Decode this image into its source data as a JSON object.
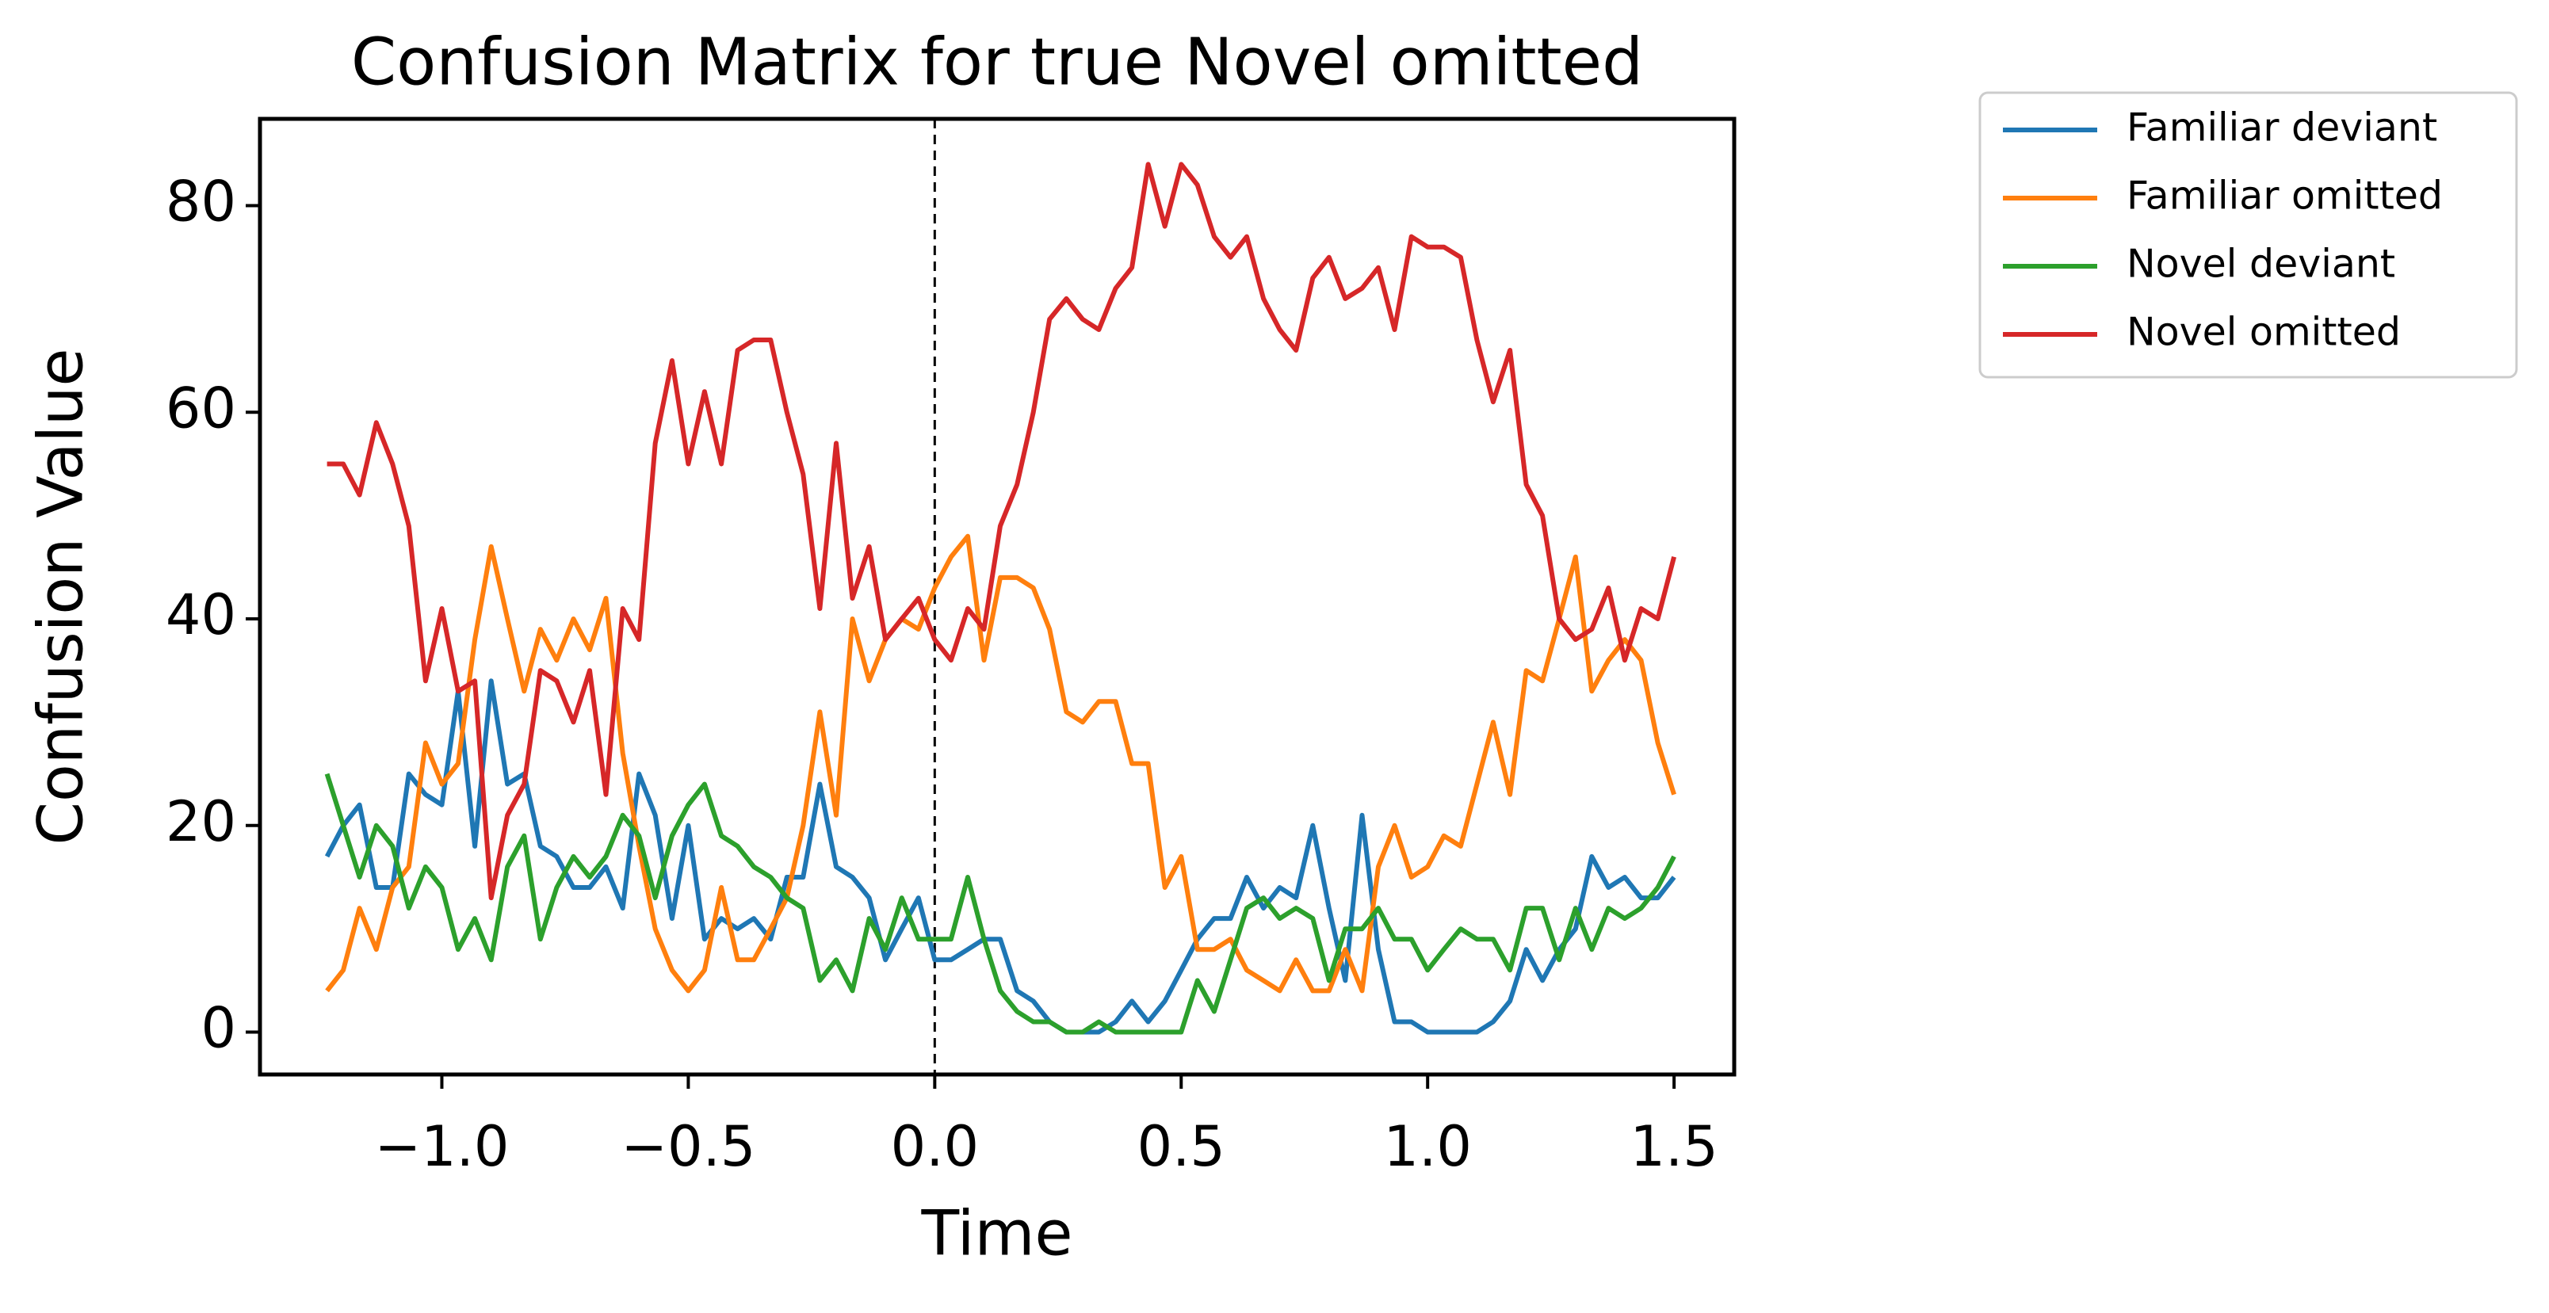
{
  "chart_data": {
    "type": "line",
    "title": "Confusion Matrix for true Novel omitted",
    "x_label": "Time",
    "y_label": "Confusion Value",
    "x": [
      -1.233,
      -1.2,
      -1.167,
      -1.133,
      -1.1,
      -1.067,
      -1.033,
      -1.0,
      -0.967,
      -0.933,
      -0.9,
      -0.867,
      -0.833,
      -0.8,
      -0.767,
      -0.733,
      -0.7,
      -0.667,
      -0.633,
      -0.6,
      -0.567,
      -0.533,
      -0.5,
      -0.467,
      -0.433,
      -0.4,
      -0.367,
      -0.333,
      -0.3,
      -0.267,
      -0.233,
      -0.2,
      -0.167,
      -0.133,
      -0.1,
      -0.067,
      -0.033,
      0.0,
      0.033,
      0.067,
      0.1,
      0.133,
      0.167,
      0.2,
      0.233,
      0.267,
      0.3,
      0.333,
      0.367,
      0.4,
      0.433,
      0.467,
      0.5,
      0.533,
      0.567,
      0.6,
      0.633,
      0.667,
      0.7,
      0.733,
      0.767,
      0.8,
      0.833,
      0.867,
      0.9,
      0.933,
      0.967,
      1.0,
      1.033,
      1.067,
      1.1,
      1.133,
      1.167,
      1.2,
      1.233,
      1.267,
      1.3,
      1.333,
      1.367,
      1.4,
      1.433,
      1.467,
      1.5
    ],
    "series": [
      {
        "name": "Familiar deviant",
        "color": "#1f77b4",
        "values": [
          17,
          20,
          22,
          14,
          14,
          25,
          23,
          22,
          33,
          18,
          34,
          24,
          25,
          18,
          17,
          14,
          14,
          16,
          12,
          25,
          21,
          11,
          20,
          9,
          11,
          10,
          11,
          9,
          15,
          15,
          24,
          16,
          15,
          13,
          7,
          10,
          13,
          7,
          7,
          8,
          9,
          9,
          4,
          3,
          1,
          0,
          0,
          0,
          1,
          3,
          1,
          3,
          6,
          9,
          11,
          11,
          15,
          12,
          14,
          13,
          20,
          12,
          5,
          21,
          8,
          1,
          1,
          0,
          0,
          0,
          0,
          1,
          3,
          8,
          5,
          8,
          10,
          17,
          14,
          15,
          13,
          13,
          15
        ]
      },
      {
        "name": "Familiar omitted",
        "color": "#ff7f0e",
        "values": [
          4,
          6,
          12,
          8,
          14,
          16,
          28,
          24,
          26,
          38,
          47,
          40,
          33,
          39,
          36,
          40,
          37,
          42,
          27,
          18,
          10,
          6,
          4,
          6,
          14,
          7,
          7,
          10,
          13,
          20,
          31,
          21,
          40,
          34,
          38,
          40,
          39,
          43,
          46,
          48,
          36,
          44,
          44,
          43,
          39,
          31,
          30,
          32,
          32,
          26,
          26,
          14,
          17,
          8,
          8,
          9,
          6,
          5,
          4,
          7,
          4,
          4,
          8,
          4,
          16,
          20,
          15,
          16,
          19,
          18,
          24,
          30,
          23,
          35,
          34,
          40,
          46,
          33,
          36,
          38,
          36,
          28,
          23
        ]
      },
      {
        "name": "Novel deviant",
        "color": "#2ca02c",
        "values": [
          25,
          20,
          15,
          20,
          18,
          12,
          16,
          14,
          8,
          11,
          7,
          16,
          19,
          9,
          14,
          17,
          15,
          17,
          21,
          19,
          13,
          19,
          22,
          24,
          19,
          18,
          16,
          15,
          13,
          12,
          5,
          7,
          4,
          11,
          8,
          13,
          9,
          9,
          9,
          15,
          9,
          4,
          2,
          1,
          1,
          0,
          0,
          1,
          0,
          0,
          0,
          0,
          0,
          5,
          2,
          7,
          12,
          13,
          11,
          12,
          11,
          5,
          10,
          10,
          12,
          9,
          9,
          6,
          8,
          10,
          9,
          9,
          6,
          12,
          12,
          7,
          12,
          8,
          12,
          11,
          12,
          14,
          17
        ]
      },
      {
        "name": "Novel omitted",
        "color": "#d62728",
        "values": [
          55,
          55,
          52,
          59,
          55,
          49,
          34,
          41,
          33,
          34,
          13,
          21,
          24,
          35,
          34,
          30,
          35,
          23,
          41,
          38,
          57,
          65,
          55,
          62,
          55,
          66,
          67,
          67,
          60,
          54,
          41,
          57,
          42,
          47,
          38,
          40,
          42,
          38,
          36,
          41,
          39,
          49,
          53,
          60,
          69,
          71,
          69,
          68,
          72,
          74,
          84,
          78,
          84,
          82,
          77,
          75,
          77,
          71,
          68,
          66,
          73,
          75,
          71,
          72,
          74,
          68,
          77,
          76,
          76,
          75,
          67,
          61,
          66,
          53,
          50,
          40,
          38,
          39,
          43,
          36,
          41,
          40,
          46
        ]
      }
    ],
    "xlim": [
      -1.369,
      1.622
    ],
    "ylim": [
      -4.1,
      88.4
    ],
    "xticks": [
      {
        "value": -1.0,
        "label": "−1.0"
      },
      {
        "value": -0.5,
        "label": "−0.5"
      },
      {
        "value": 0.0,
        "label": "0.0"
      },
      {
        "value": 0.5,
        "label": "0.5"
      },
      {
        "value": 1.0,
        "label": "1.0"
      },
      {
        "value": 1.5,
        "label": "1.5"
      }
    ],
    "yticks": [
      0,
      20,
      40,
      60,
      80
    ],
    "vline": 0,
    "grid": false,
    "legend": "outside-right"
  }
}
